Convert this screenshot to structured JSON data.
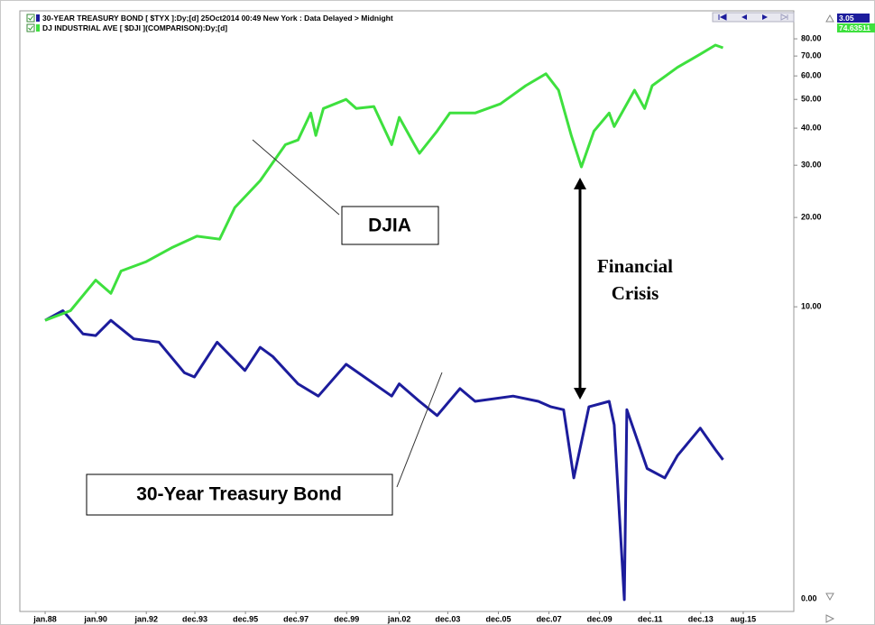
{
  "chart_data": {
    "type": "line",
    "log_y": true,
    "grid": false,
    "series": [
      {
        "name": "30-YEAR TREASURY BOND [ $TYX ]:Dy;[d]  25Oct2014 00:49 New York : Data Delayed > Midnight",
        "color": "#1c1c9c",
        "x": [
          1988.0,
          1988.7,
          1989.5,
          1990.0,
          1990.6,
          1991.5,
          1992.5,
          1993.5,
          1993.9,
          1994.8,
          1995.9,
          1996.5,
          1997.0,
          1998.0,
          1998.8,
          1999.9,
          2000.5,
          2001.7,
          2002.0,
          2002.8,
          2003.5,
          2004.4,
          2005.0,
          2006.5,
          2007.5,
          2008.0,
          2008.5,
          2008.9,
          2009.5,
          2010.3,
          2010.5,
          2010.9,
          2011.0,
          2011.8,
          2012.5,
          2013.0,
          2013.9,
          2014.5,
          2014.8
        ],
        "values": [
          9.0,
          9.7,
          8.1,
          8.0,
          9.0,
          7.8,
          7.6,
          6.0,
          5.8,
          7.6,
          6.1,
          7.3,
          6.8,
          5.5,
          5.0,
          6.4,
          5.9,
          5.0,
          5.5,
          4.8,
          4.3,
          5.3,
          4.8,
          5.0,
          4.8,
          4.6,
          4.5,
          2.65,
          4.6,
          4.8,
          4.0,
          1.03,
          4.5,
          2.85,
          2.65,
          3.15,
          3.9,
          3.3,
          3.05
        ]
      },
      {
        "name": "DJ INDUSTRIAL AVE [ $DJI ](COMPARISON):Dy;[d]",
        "color": "#3ee03e",
        "x": [
          1988.0,
          1989.0,
          1990.0,
          1990.6,
          1991.0,
          1992.0,
          1993.0,
          1994.0,
          1994.9,
          1995.5,
          1996.5,
          1997.5,
          1998.0,
          1998.5,
          1998.7,
          1999.0,
          1999.9,
          2000.3,
          2001.0,
          2001.7,
          2002.0,
          2002.6,
          2002.8,
          2003.5,
          2004.0,
          2005.0,
          2006.0,
          2007.0,
          2007.8,
          2008.3,
          2008.8,
          2009.2,
          2009.7,
          2010.3,
          2010.5,
          2011.3,
          2011.7,
          2012.0,
          2013.0,
          2013.9,
          2014.5,
          2014.8
        ],
        "values": [
          9.0,
          9.7,
          12.3,
          11.1,
          13.2,
          14.2,
          15.8,
          17.3,
          16.9,
          21.6,
          26.6,
          35.2,
          36.5,
          45.0,
          37.8,
          46.6,
          50.0,
          46.6,
          47.3,
          35.2,
          43.5,
          35.2,
          32.9,
          39.1,
          45.0,
          45.0,
          48.3,
          55.6,
          61.0,
          53.7,
          37.8,
          29.6,
          39.1,
          45.0,
          40.5,
          53.7,
          46.6,
          55.6,
          64.1,
          71.0,
          76.2,
          74.63511
        ]
      }
    ],
    "xlim": [
      1987.0,
      2017.6
    ],
    "xticks": [
      {
        "value": 1988.0,
        "label": "jan.88"
      },
      {
        "value": 1990.0,
        "label": "jan.90"
      },
      {
        "value": 1992.0,
        "label": "jan.92"
      },
      {
        "value": 1993.92,
        "label": "dec.93"
      },
      {
        "value": 1995.92,
        "label": "dec.95"
      },
      {
        "value": 1997.92,
        "label": "dec.97"
      },
      {
        "value": 1999.92,
        "label": "dec.99"
      },
      {
        "value": 2002.0,
        "label": "jan.02"
      },
      {
        "value": 2003.92,
        "label": "dec.03"
      },
      {
        "value": 2005.92,
        "label": "dec.05"
      },
      {
        "value": 2007.92,
        "label": "dec.07"
      },
      {
        "value": 2009.92,
        "label": "dec.09"
      },
      {
        "value": 2011.92,
        "label": "dec.11"
      },
      {
        "value": 2013.92,
        "label": "dec.13"
      },
      {
        "value": 2015.6,
        "label": "aug.15"
      }
    ],
    "ylim": [
      0.96,
      92.7
    ],
    "yticks": [
      {
        "value": 80,
        "label": "80.00"
      },
      {
        "value": 70,
        "label": "70.00"
      },
      {
        "value": 60,
        "label": "60.00"
      },
      {
        "value": 50,
        "label": "50.00"
      },
      {
        "value": 40,
        "label": "40.00"
      },
      {
        "value": 30,
        "label": "30.00"
      },
      {
        "value": 20,
        "label": "20.00"
      },
      {
        "value": 10,
        "label": "10.00"
      }
    ],
    "y_floor_label": "0.00",
    "annotations": {
      "djia": "DJIA",
      "bond": "30-Year Treasury Bond",
      "crisis_line1": "Financial",
      "crisis_line2": "Crisis"
    }
  }
}
